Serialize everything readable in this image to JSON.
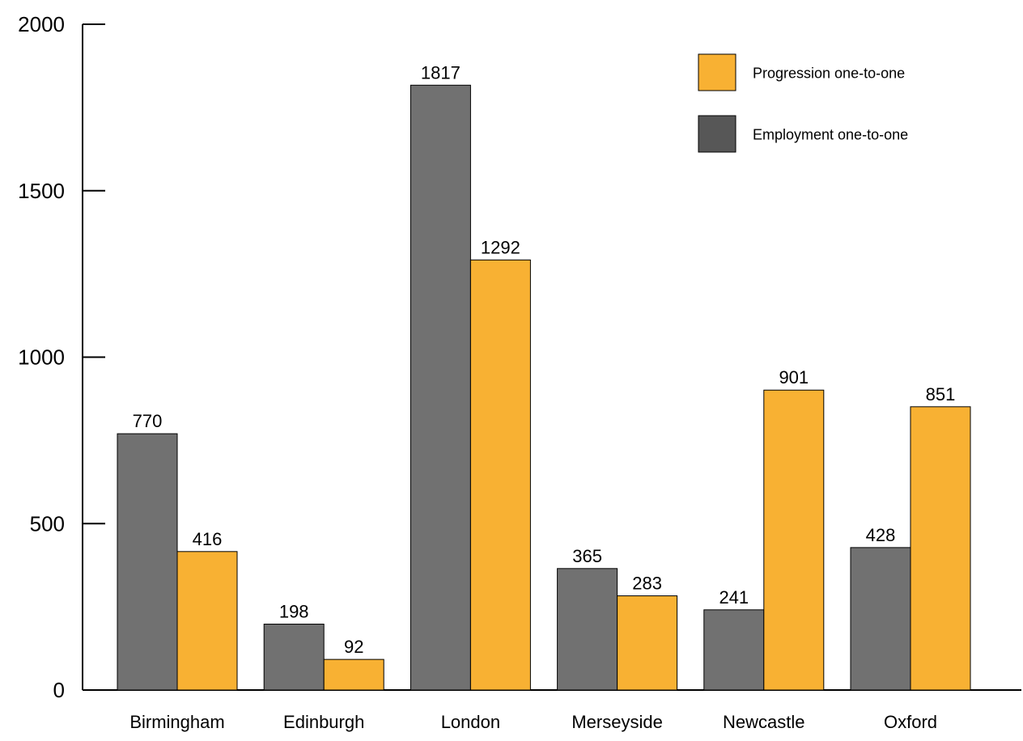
{
  "chart_data": {
    "type": "bar",
    "categories": [
      "Birmingham",
      "Edinburgh",
      "London",
      "Merseyside",
      "Newcastle",
      "Oxford"
    ],
    "series": [
      {
        "name": "Employment one-to-one",
        "color": "#717171",
        "legend_color": "#575757",
        "values": [
          770,
          198,
          1817,
          365,
          241,
          428
        ]
      },
      {
        "name": "Progression one-to-one",
        "color": "#f8b133",
        "legend_color": "#f8b133",
        "values": [
          416,
          92,
          1292,
          283,
          901,
          851
        ]
      }
    ],
    "legend_order": [
      1,
      0
    ],
    "legend_position": "top-right",
    "ylim": [
      0,
      2000
    ],
    "yticks": [
      0,
      500,
      1000,
      1500,
      2000
    ],
    "grid": false,
    "title": "",
    "xlabel": "",
    "ylabel": ""
  }
}
